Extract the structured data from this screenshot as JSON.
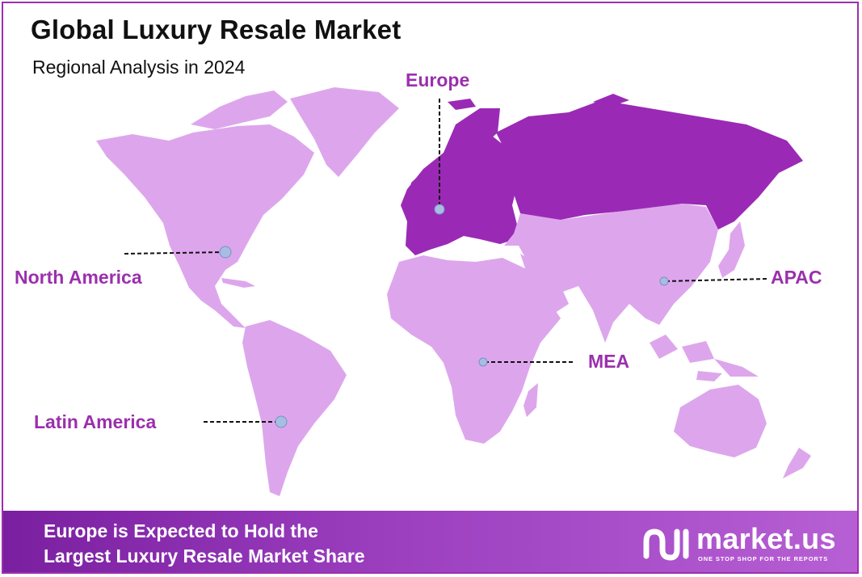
{
  "header": {
    "title": "Global Luxury Resale Market",
    "subtitle": "Regional Analysis in 2024"
  },
  "colors": {
    "highlight_region": "#9a2ab5",
    "other_regions": "#dda6ec",
    "label_text": "#9b2fae",
    "marker": "#a7bde3"
  },
  "regions": {
    "europe": {
      "label": "Europe",
      "highlighted": true
    },
    "north_america": {
      "label": "North America",
      "highlighted": false
    },
    "apac": {
      "label": "APAC",
      "highlighted": false
    },
    "mea": {
      "label": "MEA",
      "highlighted": false
    },
    "latin_america": {
      "label": "Latin America",
      "highlighted": false
    }
  },
  "footer": {
    "line1": "Europe is Expected to Hold the",
    "line2": "Largest Luxury Resale Market Share",
    "brand": "market.us",
    "tagline": "ONE STOP SHOP FOR THE REPORTS"
  }
}
